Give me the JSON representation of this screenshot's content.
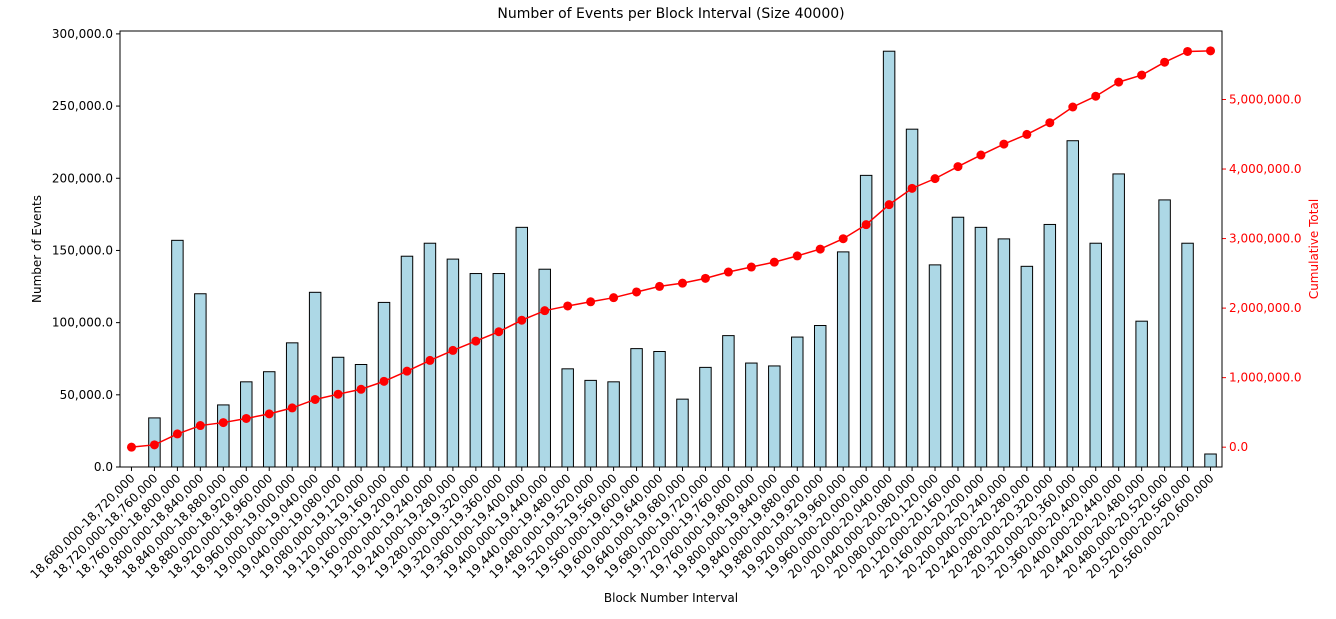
{
  "chart_data": {
    "type": "bar_line",
    "title": "Number of Events per Block Interval (Size 40000)",
    "x_label": "Block Number Interval",
    "y_label": "Number of Events",
    "y2_label": "Cumulative Total",
    "categories": [
      "18,680,000-18,720,000",
      "18,720,000-18,760,000",
      "18,760,000-18,800,000",
      "18,800,000-18,840,000",
      "18,840,000-18,880,000",
      "18,880,000-18,920,000",
      "18,920,000-18,960,000",
      "18,960,000-19,000,000",
      "19,000,000-19,040,000",
      "19,040,000-19,080,000",
      "19,080,000-19,120,000",
      "19,120,000-19,160,000",
      "19,160,000-19,200,000",
      "19,200,000-19,240,000",
      "19,240,000-19,280,000",
      "19,280,000-19,320,000",
      "19,320,000-19,360,000",
      "19,360,000-19,400,000",
      "19,400,000-19,440,000",
      "19,440,000-19,480,000",
      "19,480,000-19,520,000",
      "19,520,000-19,560,000",
      "19,560,000-19,600,000",
      "19,600,000-19,640,000",
      "19,640,000-19,680,000",
      "19,680,000-19,720,000",
      "19,720,000-19,760,000",
      "19,760,000-19,800,000",
      "19,800,000-19,840,000",
      "19,840,000-19,880,000",
      "19,880,000-19,920,000",
      "19,920,000-19,960,000",
      "19,960,000-20,000,000",
      "20,000,000-20,040,000",
      "20,040,000-20,080,000",
      "20,080,000-20,120,000",
      "20,120,000-20,160,000",
      "20,160,000-20,200,000",
      "20,200,000-20,240,000",
      "20,240,000-20,280,000",
      "20,280,000-20,320,000",
      "20,320,000-20,360,000",
      "20,360,000-20,400,000",
      "20,400,000-20,440,000",
      "20,440,000-20,480,000",
      "20,480,000-20,520,000",
      "20,520,000-20,560,000",
      "20,560,000-20,600,000"
    ],
    "series": [
      {
        "type": "bar",
        "color": "#add8e6",
        "edge_color": "#000000",
        "values": [
          0,
          34000,
          157000,
          120000,
          43000,
          59000,
          66000,
          86000,
          121000,
          76000,
          71000,
          114000,
          146000,
          155000,
          144000,
          134000,
          134000,
          166000,
          137000,
          68000,
          60000,
          59000,
          82000,
          80000,
          47000,
          69000,
          91000,
          72000,
          70000,
          90000,
          98000,
          149000,
          202000,
          288000,
          234000,
          140000,
          173000,
          166000,
          158000,
          139000,
          168000,
          226000,
          155000,
          203000,
          101000,
          185000,
          155000,
          9000
        ]
      },
      {
        "type": "line",
        "axis": "y2",
        "color": "#ff0000",
        "values": [
          0,
          34000,
          191000,
          311000,
          354000,
          413000,
          479000,
          565000,
          686000,
          762000,
          833000,
          947000,
          1093000,
          1248000,
          1392000,
          1526000,
          1660000,
          1826000,
          1963000,
          2031000,
          2091000,
          2150000,
          2232000,
          2312000,
          2359000,
          2428000,
          2519000,
          2591000,
          2661000,
          2751000,
          2849000,
          2998000,
          3200000,
          3488000,
          3722000,
          3862000,
          4035000,
          4201000,
          4359000,
          4498000,
          4666000,
          4892000,
          5047000,
          5250000,
          5351000,
          5536000,
          5691000,
          5700000
        ]
      }
    ],
    "ylim": [
      0,
      302000
    ],
    "yticks": [
      {
        "value": 0,
        "label": "0.0"
      },
      {
        "value": 50000,
        "label": "50,000.0"
      },
      {
        "value": 100000,
        "label": "100,000.0"
      },
      {
        "value": 150000,
        "label": "150,000.0"
      },
      {
        "value": 200000,
        "label": "200,000.0"
      },
      {
        "value": 250000,
        "label": "250,000.0"
      },
      {
        "value": 300000,
        "label": "300,000.0"
      }
    ],
    "y2lim": [
      -285000,
      5985000
    ],
    "y2ticks": [
      {
        "value": 0,
        "label": "0.0"
      },
      {
        "value": 1000000,
        "label": "1,000,000.0"
      },
      {
        "value": 2000000,
        "label": "2,000,000.0"
      },
      {
        "value": 3000000,
        "label": "3,000,000.0"
      },
      {
        "value": 4000000,
        "label": "4,000,000.0"
      },
      {
        "value": 5000000,
        "label": "5,000,000.0"
      }
    ],
    "y2_color": "#ff0000"
  }
}
